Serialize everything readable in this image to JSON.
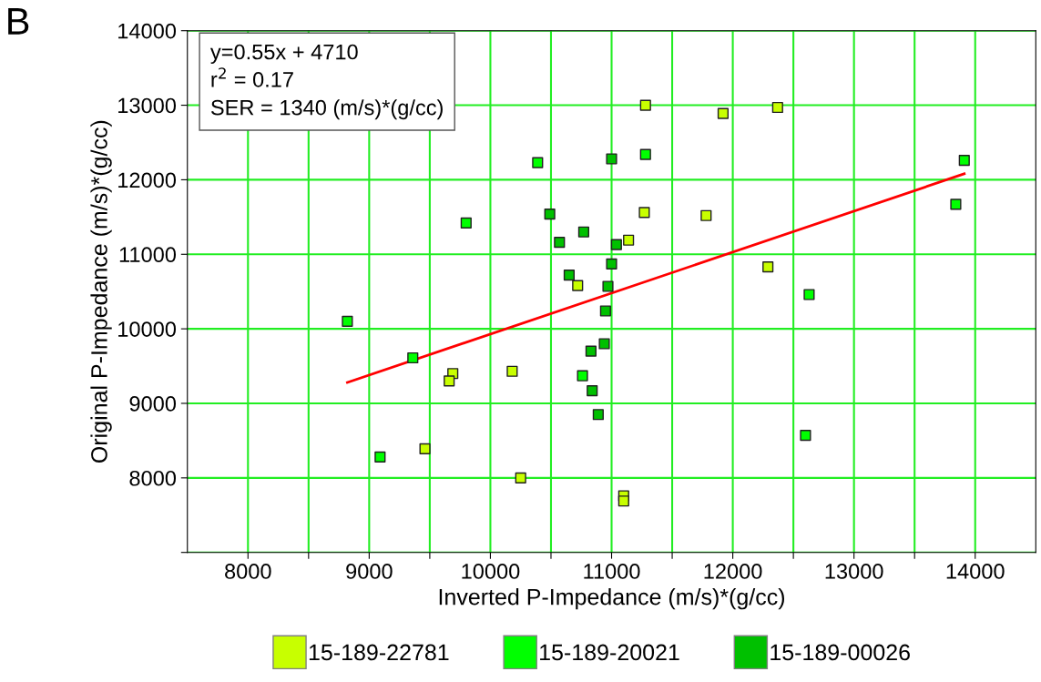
{
  "chart_data": {
    "type": "scatter",
    "xlabel": "Inverted P-Impedance (m/s)*(g/cc)",
    "ylabel": "Original P-Impedance (m/s)*(g/cc)",
    "annotations": [
      "B",
      "y=0.55x + 4710\nr$^{2}$ = 0.17\nSER = 1340 (m/s)*(g/cc)"
    ],
    "xlim": [
      7500,
      14500
    ],
    "xticks": [
      8000,
      {
        "value": 8500,
        "label": null
      },
      9000,
      {
        "value": 9500,
        "label": null
      },
      10000,
      {
        "value": 10500,
        "label": null
      },
      11000,
      {
        "value": 11500,
        "label": null
      },
      12000,
      {
        "value": 12500,
        "label": null
      },
      13000,
      {
        "value": 13500,
        "label": null
      },
      14000
    ],
    "ylim": [
      7000,
      14000
    ],
    "yticks": [
      {
        "value": 7000,
        "label": null
      },
      8000,
      9000,
      10000,
      11000,
      12000,
      13000,
      14000
    ],
    "grid": true,
    "legend": "bottom",
    "marker": "square",
    "series": [
      {
        "name": "15-189-22781",
        "color": "#c8ff00",
        "x": [
          11280,
          11920,
          12370,
          11270,
          11780,
          11140,
          10720,
          12290,
          9690,
          9660,
          10180,
          9460,
          10250,
          11100,
          11100
        ],
        "values": [
          13000,
          12890,
          12970,
          11560,
          11520,
          11190,
          10580,
          10830,
          9400,
          9300,
          9430,
          8390,
          8000,
          7760,
          7690
        ]
      },
      {
        "name": "15-189-20021",
        "color": "#00ff00",
        "x": [
          10390,
          9800,
          11280,
          13910,
          13840,
          12630,
          12600,
          8820,
          9360,
          9090,
          10760
        ],
        "values": [
          12230,
          11420,
          12340,
          12260,
          11670,
          10460,
          8570,
          10100,
          9610,
          8280,
          9370
        ]
      },
      {
        "name": "15-189-00026",
        "color": "#00c000",
        "x": [
          10490,
          10570,
          10770,
          11040,
          11000,
          10650,
          10970,
          10950,
          11000,
          10940,
          10830,
          10840,
          10890
        ],
        "values": [
          11540,
          11160,
          11300,
          11130,
          10870,
          10720,
          10570,
          10240,
          12280,
          9800,
          9700,
          9170,
          8850
        ]
      },
      {
        "type": "line",
        "marker": "none",
        "color": "#ff0000",
        "x": [
          8820,
          13910
        ],
        "values": [
          9280,
          12080
        ]
      }
    ]
  }
}
